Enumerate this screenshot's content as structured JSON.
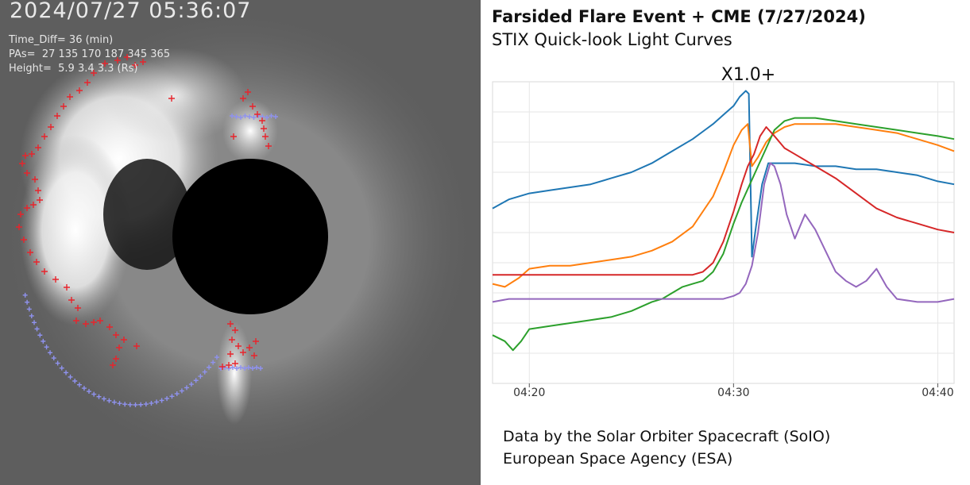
{
  "coronagraph": {
    "timestamp": "2024/07/27 05:36:07",
    "time_diff": "Time_Diff= 36 (min)",
    "pas": "PAs=  27 135 170 187 345 365",
    "height": "Height=  5.9 3.4 3.3 (Rs)",
    "colors": {
      "marker": "#e8242c",
      "fit": "#8f92ef"
    }
  },
  "panel": {
    "title": "Farsided Flare Event + CME (7/27/2024)",
    "subtitle": "STIX Quick-look Light Curves",
    "credit": [
      "Data by the Solar Orbiter Spacecraft (SoIO)",
      "European Space Agency (ESA)"
    ]
  },
  "chart_data": {
    "type": "line",
    "title": "X1.0+",
    "xlabel": "",
    "ylabel": "",
    "x_ticks": [
      "04:20",
      "04:30",
      "04:40"
    ],
    "x_tick_minutes": [
      20,
      30,
      40
    ],
    "xlim_minutes": [
      18.2,
      40.8
    ],
    "ylim": [
      0,
      100
    ],
    "grid": true,
    "y_ticks_labeled": false,
    "legend": "none",
    "series": [
      {
        "color": "#1f77b4",
        "x": [
          18.2,
          19,
          20,
          21,
          22,
          23,
          24,
          25,
          26,
          27,
          28,
          29,
          29.5,
          30,
          30.3,
          30.6,
          30.75,
          30.9,
          31.1,
          31.4,
          31.7,
          32,
          33,
          34,
          35,
          36,
          37,
          38,
          39,
          40,
          40.8
        ],
        "values": [
          58,
          61,
          63,
          64,
          65,
          66,
          68,
          70,
          73,
          77,
          81,
          86,
          89,
          92,
          95,
          97,
          96,
          42,
          52,
          66,
          73,
          73,
          73,
          72,
          72,
          71,
          71,
          70,
          69,
          67,
          66
        ]
      },
      {
        "color": "#ff7f0e",
        "x": [
          18.2,
          18.8,
          19.5,
          20,
          21,
          22,
          23,
          24,
          25,
          26,
          27,
          28,
          29,
          29.5,
          30,
          30.4,
          30.7,
          30.9,
          31.2,
          31.6,
          32,
          32.5,
          33,
          34,
          35,
          36,
          37,
          38,
          39,
          40,
          40.8
        ],
        "values": [
          33,
          32,
          35,
          38,
          39,
          39,
          40,
          41,
          42,
          44,
          47,
          52,
          62,
          70,
          79,
          84,
          86,
          72,
          75,
          80,
          83,
          85,
          86,
          86,
          86,
          85,
          84,
          83,
          81,
          79,
          77
        ]
      },
      {
        "color": "#2ca02c",
        "x": [
          18.2,
          18.8,
          19.2,
          19.6,
          20,
          21,
          22,
          23,
          24,
          25,
          26,
          26.5,
          27,
          27.5,
          28,
          28.5,
          29,
          29.5,
          30,
          30.4,
          30.8,
          31.2,
          31.6,
          32,
          32.5,
          33,
          34,
          35,
          36,
          37,
          38,
          39,
          40,
          40.8
        ],
        "values": [
          16,
          14,
          11,
          14,
          18,
          19,
          20,
          21,
          22,
          24,
          27,
          28,
          30,
          32,
          33,
          34,
          37,
          43,
          53,
          60,
          66,
          72,
          78,
          84,
          87,
          88,
          88,
          87,
          86,
          85,
          84,
          83,
          82,
          81
        ]
      },
      {
        "color": "#d62728",
        "x": [
          18.2,
          19,
          20,
          21,
          22,
          23,
          24,
          25,
          26,
          27,
          28,
          28.5,
          29,
          29.5,
          30,
          30.4,
          30.7,
          31,
          31.3,
          31.6,
          32,
          32.5,
          33,
          34,
          35,
          36,
          37,
          38,
          39,
          40,
          40.8
        ],
        "values": [
          36,
          36,
          36,
          36,
          36,
          36,
          36,
          36,
          36,
          36,
          36,
          37,
          40,
          47,
          57,
          66,
          72,
          76,
          82,
          85,
          82,
          78,
          76,
          72,
          68,
          63,
          58,
          55,
          53,
          51,
          50
        ]
      },
      {
        "color": "#9467bd",
        "x": [
          18.2,
          19,
          20,
          21,
          22,
          23,
          24,
          25,
          26,
          27,
          28,
          29,
          29.5,
          30,
          30.3,
          30.6,
          30.9,
          31.2,
          31.5,
          31.8,
          32,
          32.3,
          32.6,
          33,
          33.5,
          34,
          34.5,
          35,
          35.5,
          36,
          36.5,
          37,
          37.5,
          38,
          39,
          40,
          40.8
        ],
        "values": [
          27,
          28,
          28,
          28,
          28,
          28,
          28,
          28,
          28,
          28,
          28,
          28,
          28,
          29,
          30,
          33,
          39,
          50,
          66,
          73,
          72,
          66,
          56,
          48,
          56,
          51,
          44,
          37,
          34,
          32,
          34,
          38,
          32,
          28,
          27,
          27,
          28
        ]
      }
    ]
  }
}
